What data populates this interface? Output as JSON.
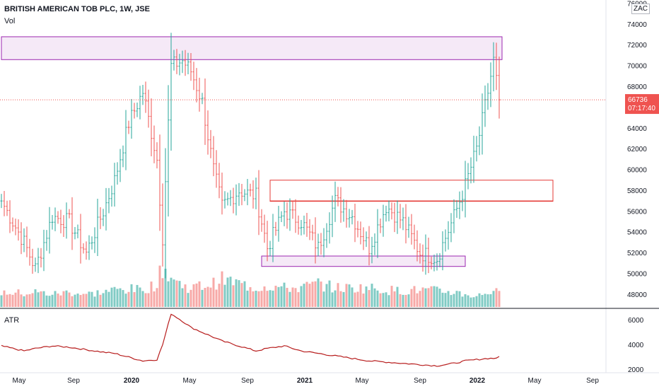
{
  "header": {
    "title": "BRITISH AMERICAN TOB PLC, 1W, JSE",
    "volume_label": "Vol",
    "currency_badge": "ZAC"
  },
  "atr_panel": {
    "label": "ATR",
    "ticks": [
      "6000",
      "4000",
      "2000"
    ]
  },
  "price_scale": {
    "ticks": [
      "76000",
      "74000",
      "72000",
      "70000",
      "68000",
      "66000",
      "64000",
      "62000",
      "60000",
      "58000",
      "56000",
      "54000",
      "52000",
      "50000",
      "48000"
    ]
  },
  "last_price": {
    "value": "66736",
    "countdown": "07:17:40"
  },
  "time_axis": {
    "labels": [
      {
        "text": "May",
        "bold": false
      },
      {
        "text": "Sep",
        "bold": false
      },
      {
        "text": "2020",
        "bold": true
      },
      {
        "text": "May",
        "bold": false
      },
      {
        "text": "Sep",
        "bold": false
      },
      {
        "text": "2021",
        "bold": true
      },
      {
        "text": "May",
        "bold": false
      },
      {
        "text": "Sep",
        "bold": false
      },
      {
        "text": "2022",
        "bold": true
      },
      {
        "text": "May",
        "bold": false
      },
      {
        "text": "Sep",
        "bold": false
      }
    ]
  },
  "colors": {
    "up": "#26a69a",
    "down": "#ef5350",
    "vol_up": "#80cbc4",
    "vol_down": "#f7a9a7",
    "atr_line": "#b71c1c",
    "purple_zone": "#9c27b0",
    "red_zone": "#e53935",
    "axis_text": "#131722"
  },
  "chart_data": {
    "type": "ohlc",
    "symbol": "BRITISH AMERICAN TOB PLC",
    "interval": "1W",
    "exchange": "JSE",
    "currency": "ZAC",
    "price_range": [
      46800,
      76200
    ],
    "atr_range": [
      1800,
      6700
    ],
    "last_price": 66736,
    "zones": [
      {
        "color": "purple",
        "start_bar": 0,
        "end_bar": 177,
        "low": 70600,
        "high": 72800
      },
      {
        "color": "red",
        "start_bar": 95,
        "end_bar": 195,
        "low": 57000,
        "high": 59000
      },
      {
        "color": "red",
        "start_bar": 95,
        "end_bar": 195,
        "low": 57000,
        "high": 57000
      },
      {
        "color": "purple",
        "start_bar": 92,
        "end_bar": 164,
        "low": 50700,
        "high": 51700
      }
    ],
    "anchors": [
      {
        "bar": 0,
        "close": 57000,
        "vol": 0.35,
        "atr": 3900
      },
      {
        "bar": 8,
        "close": 53000,
        "vol": 0.32,
        "atr": 3500
      },
      {
        "bar": 12,
        "close": 50500,
        "vol": 0.35,
        "atr": 3700
      },
      {
        "bar": 18,
        "close": 55500,
        "vol": 0.3,
        "atr": 3900
      },
      {
        "bar": 24,
        "close": 55000,
        "vol": 0.35,
        "atr": 3800
      },
      {
        "bar": 30,
        "close": 52000,
        "vol": 0.3,
        "atr": 3600
      },
      {
        "bar": 36,
        "close": 56000,
        "vol": 0.35,
        "atr": 3400
      },
      {
        "bar": 40,
        "close": 59000,
        "vol": 0.4,
        "atr": 3300
      },
      {
        "bar": 45,
        "close": 64500,
        "vol": 0.42,
        "atr": 3000
      },
      {
        "bar": 50,
        "close": 67500,
        "vol": 0.4,
        "atr": 2700
      },
      {
        "bar": 55,
        "close": 61000,
        "vol": 0.55,
        "atr": 2800
      },
      {
        "bar": 57,
        "close": 53500,
        "vol": 0.95,
        "atr": 4000
      },
      {
        "bar": 60,
        "close": 70000,
        "vol": 0.7,
        "atr": 6500
      },
      {
        "bar": 64,
        "close": 70500,
        "vol": 0.5,
        "atr": 5900
      },
      {
        "bar": 67,
        "close": 69500,
        "vol": 0.45,
        "atr": 5400
      },
      {
        "bar": 71,
        "close": 66500,
        "vol": 0.5,
        "atr": 5000
      },
      {
        "bar": 75,
        "close": 60000,
        "vol": 0.55,
        "atr": 4600
      },
      {
        "bar": 78,
        "close": 56500,
        "vol": 0.65,
        "atr": 4300
      },
      {
        "bar": 84,
        "close": 58000,
        "vol": 0.55,
        "atr": 3900
      },
      {
        "bar": 90,
        "close": 57500,
        "vol": 0.45,
        "atr": 3500
      },
      {
        "bar": 94,
        "close": 52500,
        "vol": 0.5,
        "atr": 3700
      },
      {
        "bar": 100,
        "close": 56000,
        "vol": 0.45,
        "atr": 3900
      },
      {
        "bar": 106,
        "close": 55000,
        "vol": 0.45,
        "atr": 3500
      },
      {
        "bar": 112,
        "close": 52500,
        "vol": 0.55,
        "atr": 3300
      },
      {
        "bar": 118,
        "close": 57000,
        "vol": 0.45,
        "atr": 3100
      },
      {
        "bar": 124,
        "close": 55500,
        "vol": 0.45,
        "atr": 2900
      },
      {
        "bar": 130,
        "close": 52500,
        "vol": 0.45,
        "atr": 2700
      },
      {
        "bar": 136,
        "close": 56500,
        "vol": 0.4,
        "atr": 2600
      },
      {
        "bar": 142,
        "close": 55000,
        "vol": 0.38,
        "atr": 2500
      },
      {
        "bar": 148,
        "close": 52000,
        "vol": 0.4,
        "atr": 2400
      },
      {
        "bar": 154,
        "close": 51500,
        "vol": 0.38,
        "atr": 2300
      },
      {
        "bar": 160,
        "close": 55500,
        "vol": 0.35,
        "atr": 2500
      },
      {
        "bar": 164,
        "close": 58500,
        "vol": 0.3,
        "atr": 2700
      },
      {
        "bar": 168,
        "close": 62000,
        "vol": 0.25,
        "atr": 2800
      },
      {
        "bar": 172,
        "close": 67500,
        "vol": 0.35,
        "atr": 2900
      },
      {
        "bar": 174,
        "close": 70500,
        "vol": 0.4,
        "atr": 2900
      },
      {
        "bar": 176,
        "close": 66736,
        "vol": 0.3,
        "atr": 3000
      }
    ]
  }
}
